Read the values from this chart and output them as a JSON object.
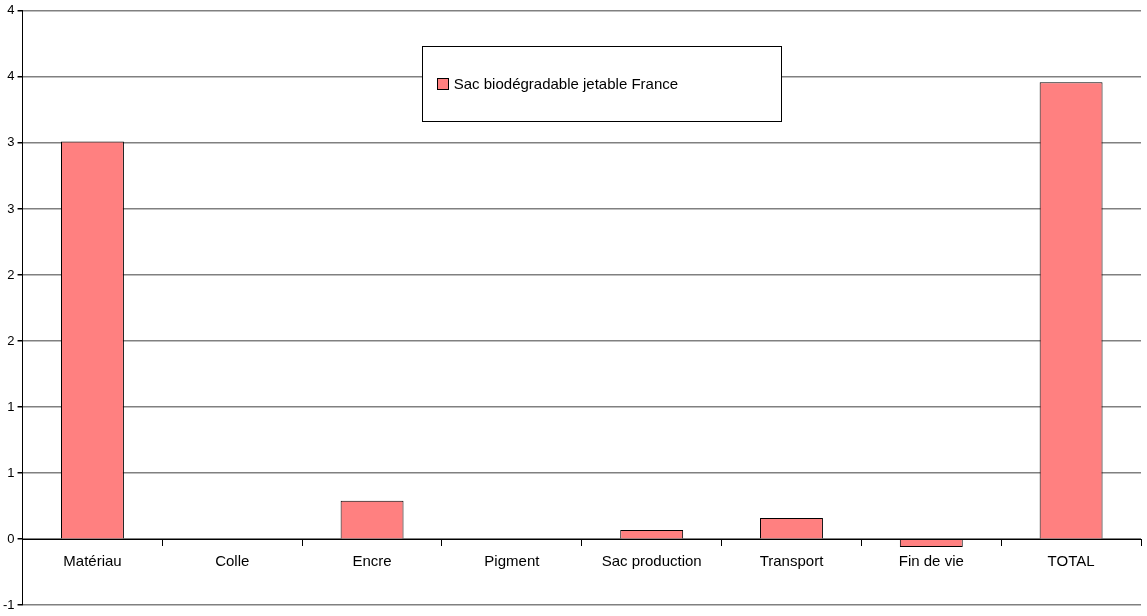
{
  "chart_data": {
    "type": "bar",
    "categories": [
      "Matériau",
      "Colle",
      "Encre",
      "Pigment",
      "Sac production",
      "Transport",
      "Fin de vie",
      "TOTAL"
    ],
    "series": [
      {
        "name": "Sac biodégradable jetable France",
        "color": "#ff8080",
        "values": [
          3.01,
          0,
          0.29,
          0,
          0.07,
          0.16,
          -0.06,
          3.46
        ]
      }
    ],
    "ylim": [
      -0.5,
      4
    ],
    "yticks": [
      {
        "value": -0.5,
        "label": "-1"
      },
      0,
      {
        "value": 0.5,
        "label": "1"
      },
      1,
      {
        "value": 1.5,
        "label": "2"
      },
      2,
      {
        "value": 2.5,
        "label": "3"
      },
      3,
      {
        "value": 3.5,
        "label": "4"
      },
      4
    ],
    "grid": "y",
    "legend": "top"
  }
}
